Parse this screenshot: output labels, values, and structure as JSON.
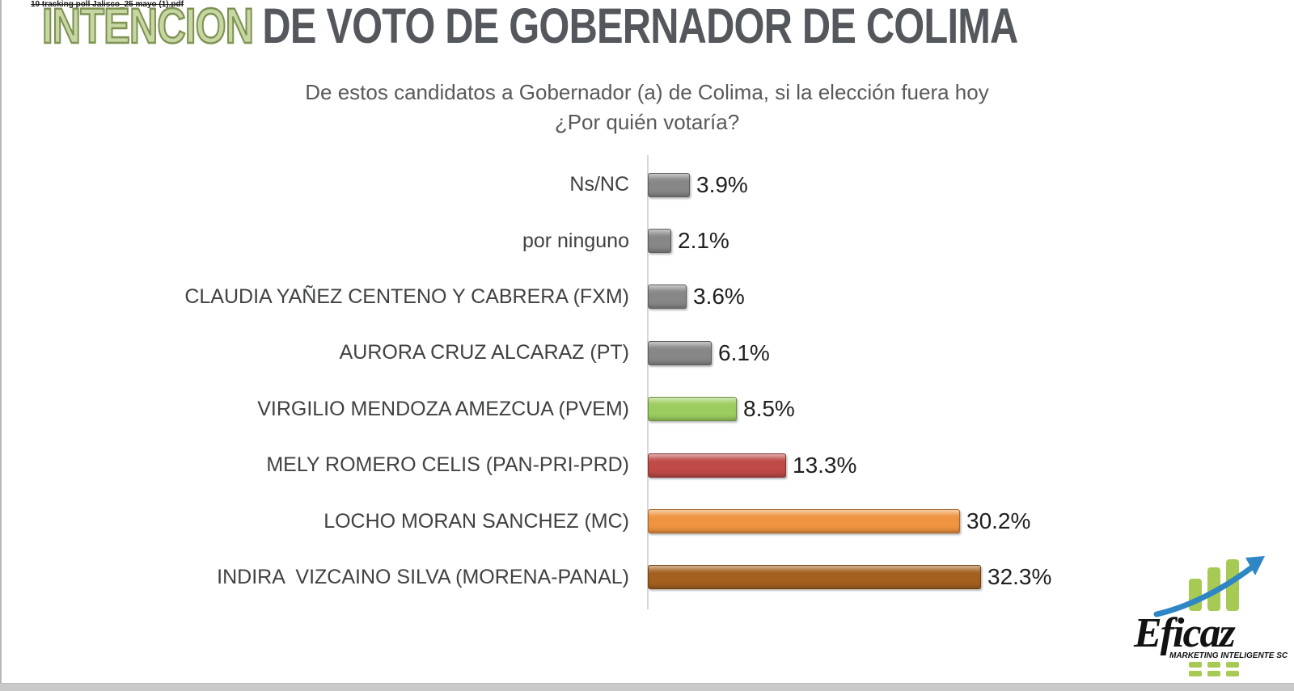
{
  "page": {
    "file_note": "10 tracking poll Jalisco_25 mayo (1).pdf",
    "title_highlight": "INTENCION",
    "title_rest": "DE VOTO DE GOBERNADOR DE COLIMA",
    "subtitle_line1": "De estos candidatos a Gobernador (a) de Colima, si la elección fuera hoy",
    "subtitle_line2": "¿Por quién votaría?"
  },
  "chart_data": {
    "type": "bar",
    "orientation": "horizontal",
    "title": "INTENCION DE VOTO DE GOBERNADOR DE COLIMA",
    "subtitle": "De estos candidatos a Gobernador (a) de Colima, si la elección fuera hoy ¿Por quién votaría?",
    "xlim": [
      0,
      35
    ],
    "grid": false,
    "value_suffix": "%",
    "rows": [
      {
        "label": "Ns/NC",
        "value": 3.9,
        "display": "3.9%",
        "color": "#878787"
      },
      {
        "label": "por ninguno",
        "value": 2.1,
        "display": "2.1%",
        "color": "#878787"
      },
      {
        "label": "CLAUDIA YAÑEZ CENTENO Y CABRERA (FXM)",
        "value": 3.6,
        "display": "3.6%",
        "color": "#878787"
      },
      {
        "label": "AURORA CRUZ ALCARAZ (PT)",
        "value": 6.1,
        "display": "6.1%",
        "color": "#878787"
      },
      {
        "label": "VIRGILIO MENDOZA AMEZCUA (PVEM)",
        "value": 8.5,
        "display": "8.5%",
        "color": "#9ccd5f"
      },
      {
        "label": "MELY ROMERO CELIS (PAN-PRI-PRD)",
        "value": 13.3,
        "display": "13.3%",
        "color": "#bf4a47"
      },
      {
        "label": "LOCHO MORAN SANCHEZ (MC)",
        "value": 30.2,
        "display": "30.2%",
        "color": "#ef9440"
      },
      {
        "label": "INDIRA  VIZCAINO SILVA (MORENA-PANAL)",
        "value": 32.3,
        "display": "32.3%",
        "color": "#a4601f"
      }
    ]
  },
  "logo": {
    "name": "Eficaz",
    "tagline": "MARKETING INTELIGENTE SC",
    "green": "#a6ca53",
    "blue": "#2e86c4",
    "black": "#121212"
  }
}
